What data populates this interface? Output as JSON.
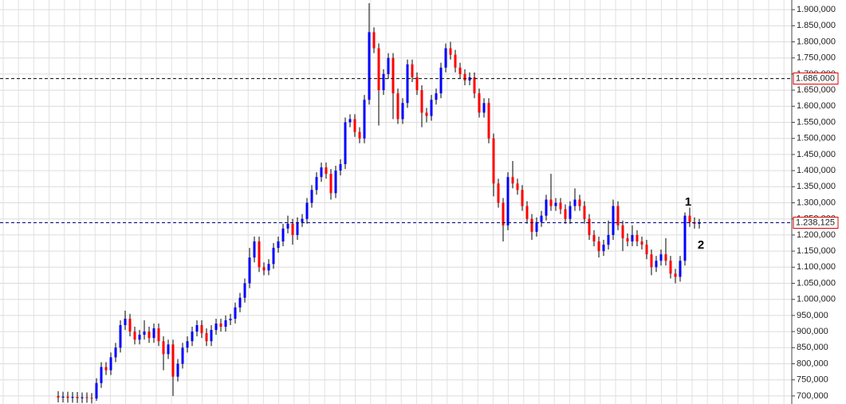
{
  "chart_data": {
    "type": "candlestick",
    "up_color": "#0000ff",
    "down_color": "#ff0000",
    "wick_color": "#000000",
    "grid": true,
    "ylim": [
      675,
      1930
    ],
    "yticks": [
      {
        "value": 700,
        "label": "700,000"
      },
      {
        "value": 750,
        "label": "750,000"
      },
      {
        "value": 800,
        "label": "800,000"
      },
      {
        "value": 850,
        "label": "850,000"
      },
      {
        "value": 900,
        "label": "900,000"
      },
      {
        "value": 950,
        "label": "950,000"
      },
      {
        "value": 1000,
        "label": "1.000,000"
      },
      {
        "value": 1050,
        "label": "1.050,000"
      },
      {
        "value": 1100,
        "label": "1.100,000"
      },
      {
        "value": 1150,
        "label": "1.150,000"
      },
      {
        "value": 1200,
        "label": "1.200,000"
      },
      {
        "value": 1250,
        "label": "1.250,000"
      },
      {
        "value": 1300,
        "label": "1.300,000"
      },
      {
        "value": 1350,
        "label": "1.350,000"
      },
      {
        "value": 1400,
        "label": "1.400,000"
      },
      {
        "value": 1450,
        "label": "1.450,000"
      },
      {
        "value": 1500,
        "label": "1.500,000"
      },
      {
        "value": 1550,
        "label": "1.550,000"
      },
      {
        "value": 1600,
        "label": "1.600,000"
      },
      {
        "value": 1650,
        "label": "1.650,000"
      },
      {
        "value": 1700,
        "label": "1.700,000"
      },
      {
        "value": 1750,
        "label": "1.750,000"
      },
      {
        "value": 1800,
        "label": "1.800,000"
      },
      {
        "value": 1850,
        "label": "1.850,000"
      },
      {
        "value": 1900,
        "label": "1.900,000"
      }
    ],
    "price_lines": [
      {
        "value": 1686,
        "label": "1.686,000",
        "color": "#000000"
      },
      {
        "value": 1238.125,
        "label": "1.238,125",
        "color": "#000080"
      }
    ],
    "annotations": [
      "1",
      "2"
    ],
    "open": [
      700,
      695,
      698,
      694,
      697,
      693,
      696,
      694,
      692,
      740,
      790,
      780,
      820,
      850,
      920,
      940,
      900,
      875,
      890,
      900,
      880,
      910,
      870,
      830,
      860,
      760,
      800,
      850,
      870,
      900,
      920,
      895,
      870,
      905,
      925,
      915,
      935,
      940,
      975,
      1005,
      1050,
      1130,
      1180,
      1100,
      1090,
      1110,
      1160,
      1180,
      1220,
      1235,
      1200,
      1240,
      1250,
      1300,
      1340,
      1380,
      1410,
      1390,
      1330,
      1400,
      1420,
      1550,
      1560,
      1520,
      1500,
      1620,
      1830,
      1780,
      1650,
      1700,
      1750,
      1640,
      1560,
      1610,
      1730,
      1690,
      1650,
      1580,
      1570,
      1620,
      1640,
      1720,
      1780,
      1760,
      1720,
      1700,
      1680,
      1690,
      1640,
      1580,
      1610,
      1500,
      1360,
      1300,
      1230,
      1380,
      1360,
      1340,
      1290,
      1250,
      1210,
      1240,
      1260,
      1310,
      1290,
      1300,
      1280,
      1250,
      1290,
      1310,
      1290,
      1250,
      1200,
      1180,
      1150,
      1170,
      1200,
      1290,
      1230,
      1190,
      1180,
      1200,
      1180,
      1170,
      1140,
      1100,
      1120,
      1140,
      1120,
      1080,
      1070,
      1120,
      1260,
      1240,
      1235
    ],
    "high": [
      715,
      713,
      713,
      712,
      712,
      711,
      711,
      709,
      755,
      805,
      805,
      835,
      865,
      935,
      965,
      955,
      915,
      905,
      935,
      915,
      925,
      925,
      885,
      875,
      875,
      815,
      865,
      885,
      915,
      935,
      935,
      910,
      920,
      940,
      940,
      950,
      955,
      990,
      1020,
      1065,
      1160,
      1195,
      1195,
      1115,
      1125,
      1175,
      1195,
      1235,
      1260,
      1250,
      1255,
      1265,
      1315,
      1355,
      1395,
      1425,
      1425,
      1405,
      1415,
      1435,
      1565,
      1575,
      1575,
      1535,
      1635,
      1920,
      1845,
      1795,
      1715,
      1765,
      1765,
      1655,
      1625,
      1745,
      1745,
      1705,
      1665,
      1595,
      1635,
      1655,
      1735,
      1795,
      1800,
      1775,
      1735,
      1715,
      1705,
      1705,
      1655,
      1625,
      1625,
      1515,
      1375,
      1315,
      1395,
      1430,
      1375,
      1355,
      1305,
      1265,
      1255,
      1275,
      1325,
      1390,
      1315,
      1315,
      1295,
      1305,
      1345,
      1325,
      1305,
      1265,
      1215,
      1195,
      1185,
      1245,
      1310,
      1305,
      1245,
      1205,
      1230,
      1215,
      1195,
      1185,
      1155,
      1135,
      1155,
      1190,
      1135,
      1095,
      1135,
      1270,
      1285,
      1255,
      1250
    ],
    "low": [
      680,
      680,
      679,
      679,
      678,
      678,
      679,
      677,
      685,
      725,
      765,
      765,
      805,
      835,
      905,
      885,
      860,
      860,
      875,
      865,
      865,
      855,
      780,
      815,
      700,
      745,
      785,
      835,
      855,
      885,
      880,
      855,
      855,
      890,
      900,
      900,
      920,
      925,
      960,
      990,
      1035,
      1115,
      1085,
      1075,
      1075,
      1095,
      1145,
      1165,
      1205,
      1170,
      1185,
      1225,
      1235,
      1285,
      1325,
      1365,
      1375,
      1310,
      1315,
      1385,
      1405,
      1535,
      1505,
      1485,
      1485,
      1605,
      1765,
      1540,
      1635,
      1685,
      1560,
      1545,
      1545,
      1595,
      1675,
      1635,
      1535,
      1550,
      1555,
      1605,
      1625,
      1705,
      1745,
      1705,
      1685,
      1665,
      1665,
      1625,
      1565,
      1565,
      1485,
      1320,
      1285,
      1180,
      1215,
      1345,
      1325,
      1275,
      1235,
      1185,
      1195,
      1225,
      1245,
      1275,
      1275,
      1265,
      1235,
      1235,
      1275,
      1275,
      1235,
      1185,
      1165,
      1130,
      1135,
      1155,
      1185,
      1215,
      1150,
      1165,
      1165,
      1165,
      1155,
      1125,
      1075,
      1085,
      1105,
      1105,
      1065,
      1050,
      1055,
      1105,
      1225,
      1220,
      1220
    ],
    "close": [
      695,
      698,
      694,
      697,
      693,
      696,
      694,
      692,
      740,
      790,
      780,
      820,
      850,
      920,
      940,
      900,
      875,
      890,
      900,
      880,
      910,
      870,
      830,
      860,
      760,
      800,
      850,
      870,
      900,
      920,
      895,
      870,
      905,
      925,
      915,
      935,
      940,
      975,
      1005,
      1050,
      1130,
      1180,
      1100,
      1090,
      1110,
      1160,
      1180,
      1220,
      1235,
      1200,
      1240,
      1250,
      1300,
      1340,
      1380,
      1410,
      1390,
      1330,
      1400,
      1420,
      1550,
      1560,
      1520,
      1500,
      1620,
      1830,
      1780,
      1650,
      1700,
      1750,
      1640,
      1560,
      1610,
      1730,
      1690,
      1650,
      1580,
      1570,
      1620,
      1640,
      1720,
      1780,
      1760,
      1720,
      1700,
      1680,
      1690,
      1640,
      1580,
      1610,
      1500,
      1360,
      1300,
      1230,
      1380,
      1360,
      1340,
      1290,
      1250,
      1210,
      1240,
      1260,
      1310,
      1290,
      1300,
      1280,
      1250,
      1290,
      1310,
      1290,
      1250,
      1200,
      1180,
      1150,
      1170,
      1200,
      1290,
      1230,
      1190,
      1180,
      1200,
      1180,
      1170,
      1140,
      1100,
      1120,
      1140,
      1120,
      1080,
      1070,
      1120,
      1260,
      1240,
      1235,
      1238
    ]
  }
}
